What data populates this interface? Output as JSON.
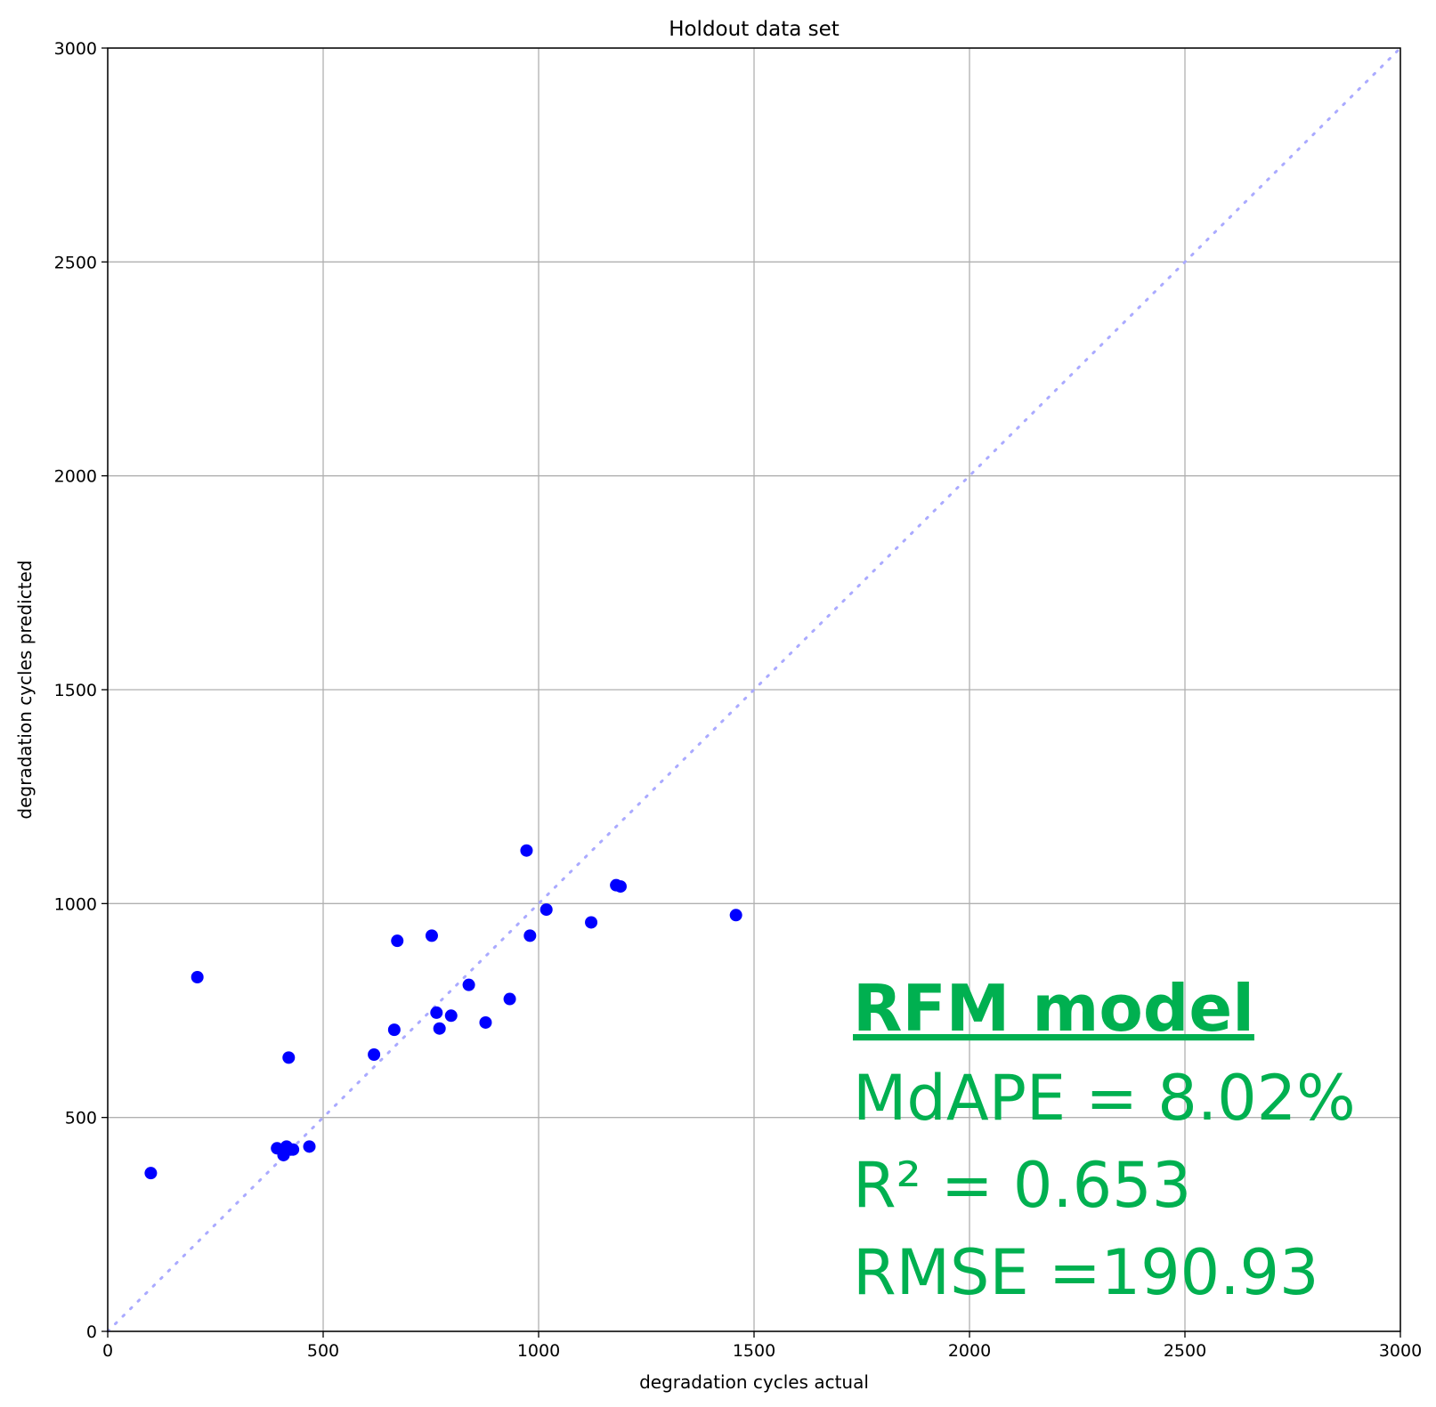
{
  "chart_data": {
    "type": "scatter",
    "title": "Holdout data set",
    "xlabel": "degradation cycles actual",
    "ylabel": "degradation cycles predicted",
    "xlim": [
      0,
      3000
    ],
    "ylim": [
      0,
      3000
    ],
    "xticks": [
      "0",
      "500",
      "1000",
      "1500",
      "2000",
      "2500",
      "3000"
    ],
    "yticks": [
      "0",
      "500",
      "1000",
      "1500",
      "2000",
      "2500",
      "3000"
    ],
    "grid": true,
    "legend": "none",
    "point_color": "#0000ff",
    "reference_line": {
      "style": "dotted",
      "color": "#aaaaff",
      "from": [
        0,
        0
      ],
      "to": [
        3000,
        3000
      ]
    },
    "points": [
      {
        "x": 100,
        "y": 370
      },
      {
        "x": 208,
        "y": 828
      },
      {
        "x": 393,
        "y": 428
      },
      {
        "x": 408,
        "y": 412
      },
      {
        "x": 415,
        "y": 432
      },
      {
        "x": 420,
        "y": 640
      },
      {
        "x": 425,
        "y": 425
      },
      {
        "x": 430,
        "y": 425
      },
      {
        "x": 468,
        "y": 432
      },
      {
        "x": 618,
        "y": 647
      },
      {
        "x": 665,
        "y": 705
      },
      {
        "x": 672,
        "y": 913
      },
      {
        "x": 752,
        "y": 925
      },
      {
        "x": 763,
        "y": 745
      },
      {
        "x": 770,
        "y": 708
      },
      {
        "x": 797,
        "y": 738
      },
      {
        "x": 838,
        "y": 810
      },
      {
        "x": 877,
        "y": 722
      },
      {
        "x": 933,
        "y": 777
      },
      {
        "x": 972,
        "y": 1124
      },
      {
        "x": 980,
        "y": 925
      },
      {
        "x": 1018,
        "y": 986
      },
      {
        "x": 1122,
        "y": 956
      },
      {
        "x": 1180,
        "y": 1043
      },
      {
        "x": 1190,
        "y": 1040
      },
      {
        "x": 1458,
        "y": 973
      }
    ]
  },
  "annotation": {
    "color": "#00b050",
    "title": "RFM model",
    "mdape": "MdAPE = 8.02%",
    "r2": "R² = 0.653",
    "rmse": "RMSE =190.93"
  }
}
